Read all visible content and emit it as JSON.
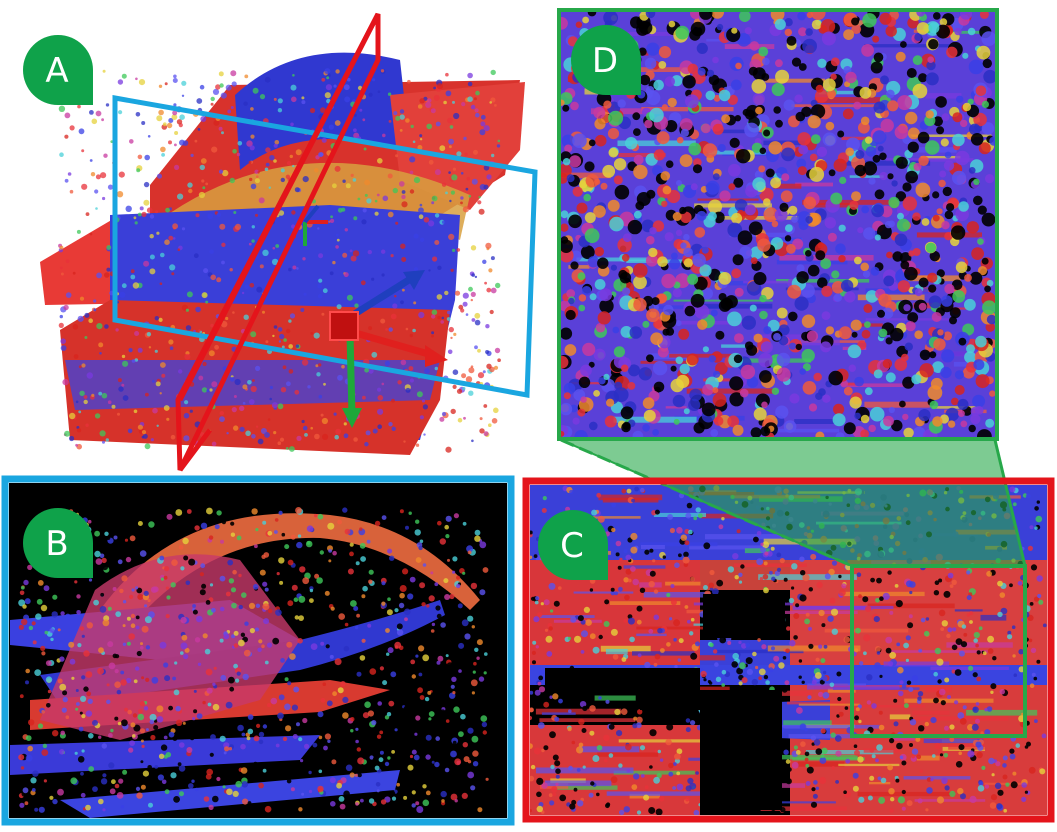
{
  "figure": {
    "accent_colors": {
      "panel_b_border": "#1aa6e0",
      "panel_c_border": "#e4141b",
      "panel_d_border": "#27a84a",
      "label_badge": "#0fa24a",
      "axis_x": "#e0201e",
      "axis_y": "#1fa83a",
      "axis_z": "#1f3fbe"
    },
    "panels": [
      {
        "id": "A",
        "label": "A",
        "content": "3d-volume-rendering"
      },
      {
        "id": "B",
        "label": "B",
        "content": "blue-plane-slice"
      },
      {
        "id": "C",
        "label": "C",
        "content": "red-plane-slice"
      },
      {
        "id": "D",
        "label": "D",
        "content": "zoomed-region-of-c"
      }
    ],
    "palette": [
      "#e8323a",
      "#d8241e",
      "#f05a3c",
      "#3a40e6",
      "#2a2fc4",
      "#5a52f0",
      "#7a3adf",
      "#3ec85a",
      "#e6d23c",
      "#c83aa0",
      "#f08a2c",
      "#4ad0d8"
    ]
  }
}
